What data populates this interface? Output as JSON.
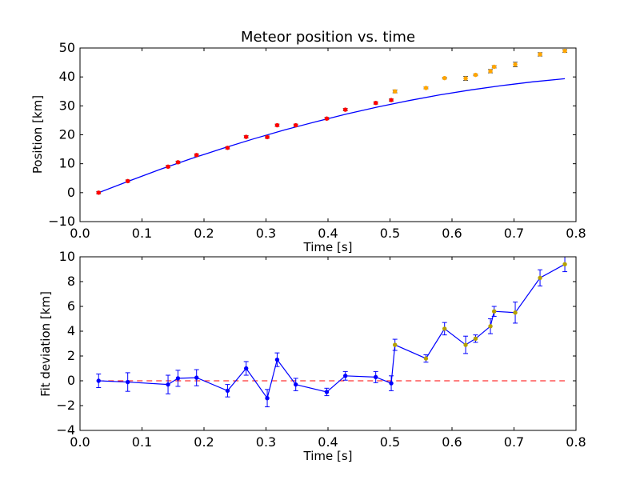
{
  "chart_data": [
    {
      "type": "scatter",
      "title": "Meteor position vs. time",
      "xlabel": "Time [s]",
      "ylabel": "Position [km]",
      "xlim": [
        0.0,
        0.8
      ],
      "ylim": [
        -10,
        50
      ],
      "xticks": [
        "0.0",
        "0.1",
        "0.2",
        "0.3",
        "0.4",
        "0.5",
        "0.6",
        "0.7",
        "0.8"
      ],
      "yticks": [
        "−10",
        "0",
        "10",
        "20",
        "30",
        "40",
        "50"
      ],
      "grid": false,
      "colors": {
        "fit_line": "#0000ff",
        "fit_points": "#ff0000",
        "excluded_points": "#ffa500",
        "errorbar": "#555555"
      },
      "series": [
        {
          "role": "fit_points",
          "x": [
            0.03,
            0.077,
            0.142,
            0.158,
            0.188,
            0.238,
            0.268,
            0.302,
            0.318,
            0.348,
            0.398,
            0.428,
            0.477,
            0.502
          ],
          "y": [
            0.0,
            4.0,
            9.0,
            10.5,
            13.0,
            15.5,
            19.3,
            19.2,
            23.3,
            23.3,
            25.6,
            28.7,
            31.0,
            32.0
          ],
          "err": [
            0.4,
            0.4,
            0.4,
            0.4,
            0.4,
            0.4,
            0.4,
            0.4,
            0.4,
            0.4,
            0.4,
            0.4,
            0.4,
            0.4
          ]
        },
        {
          "role": "excluded_points",
          "x": [
            0.508,
            0.558,
            0.588,
            0.622,
            0.638,
            0.662,
            0.668,
            0.702,
            0.742,
            0.782
          ],
          "y": [
            35.0,
            36.2,
            39.6,
            39.5,
            40.7,
            42.0,
            43.5,
            44.3,
            47.8,
            49.0
          ],
          "err": [
            0.5,
            0.3,
            0.3,
            0.7,
            0.3,
            0.6,
            0.4,
            0.8,
            0.6,
            0.5
          ]
        },
        {
          "role": "fit_line",
          "x": [
            0.03,
            0.08,
            0.13,
            0.18,
            0.23,
            0.28,
            0.33,
            0.38,
            0.43,
            0.48,
            0.53,
            0.58,
            0.63,
            0.68,
            0.73,
            0.782
          ],
          "y": [
            0.0,
            4.1,
            8.1,
            11.8,
            15.3,
            18.6,
            21.7,
            24.5,
            27.2,
            29.6,
            31.8,
            33.8,
            35.5,
            37.0,
            38.3,
            39.4
          ]
        }
      ]
    },
    {
      "type": "line",
      "title": "",
      "xlabel": "Time [s]",
      "ylabel": "Fit deviation [km]",
      "xlim": [
        0.0,
        0.8
      ],
      "ylim": [
        -4,
        10
      ],
      "xticks": [
        "0.0",
        "0.1",
        "0.2",
        "0.3",
        "0.4",
        "0.5",
        "0.6",
        "0.7",
        "0.8"
      ],
      "yticks": [
        "−4",
        "−2",
        "0",
        "2",
        "4",
        "6",
        "8",
        "10"
      ],
      "grid": false,
      "reference_line_y": 0,
      "colors": {
        "deviation_line": "#0000ff",
        "reference_line": "#ff0000",
        "fit_markers": "#0000ff",
        "excluded_markers": "#b5a000"
      },
      "series": [
        {
          "role": "deviation",
          "x": [
            0.03,
            0.077,
            0.142,
            0.158,
            0.188,
            0.238,
            0.268,
            0.302,
            0.318,
            0.348,
            0.398,
            0.428,
            0.477,
            0.502,
            0.508,
            0.558,
            0.588,
            0.622,
            0.638,
            0.662,
            0.668,
            0.702,
            0.742,
            0.782
          ],
          "y": [
            0.0,
            -0.1,
            -0.3,
            0.2,
            0.25,
            -0.8,
            1.0,
            -1.4,
            1.7,
            -0.3,
            -0.9,
            0.4,
            0.3,
            -0.2,
            2.9,
            1.8,
            4.2,
            2.9,
            3.4,
            4.4,
            5.6,
            5.5,
            8.3,
            9.4
          ],
          "err": [
            0.55,
            0.75,
            0.75,
            0.65,
            0.65,
            0.5,
            0.55,
            0.7,
            0.55,
            0.5,
            0.3,
            0.35,
            0.45,
            0.6,
            0.45,
            0.3,
            0.5,
            0.7,
            0.3,
            0.6,
            0.4,
            0.85,
            0.65,
            0.6
          ],
          "excluded_from": 14
        }
      ]
    }
  ]
}
